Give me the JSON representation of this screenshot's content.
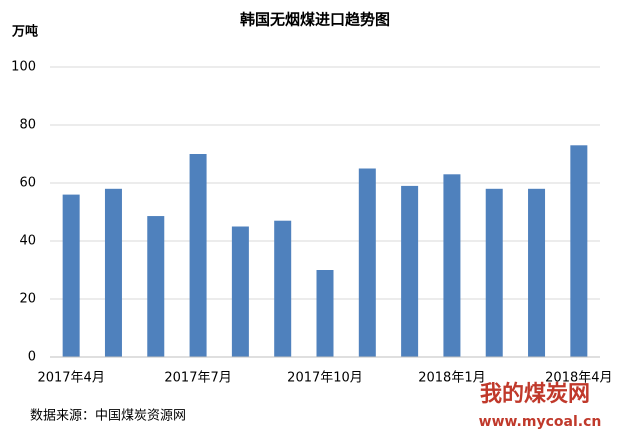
{
  "chart_data": {
    "type": "bar",
    "title": "韩国无烟煤进口趋势图",
    "y_label": "万吨",
    "categories": [
      "2017年4月",
      null,
      null,
      "2017年7月",
      null,
      null,
      "2017年10月",
      null,
      null,
      "2018年1月",
      null,
      null,
      "2018年4月"
    ],
    "values": [
      56,
      58,
      48.6,
      70,
      45,
      47,
      30,
      65,
      59,
      63,
      58,
      58,
      73
    ],
    "color": "#4f81bd",
    "ylim": [
      0,
      100
    ],
    "yticks": [
      0,
      20,
      40,
      60,
      80,
      100
    ],
    "grid": true,
    "source": "数据来源：中国煤炭资源网"
  },
  "watermark": {
    "brand": "我的煤炭网",
    "url": "www.mycoal.cn"
  }
}
